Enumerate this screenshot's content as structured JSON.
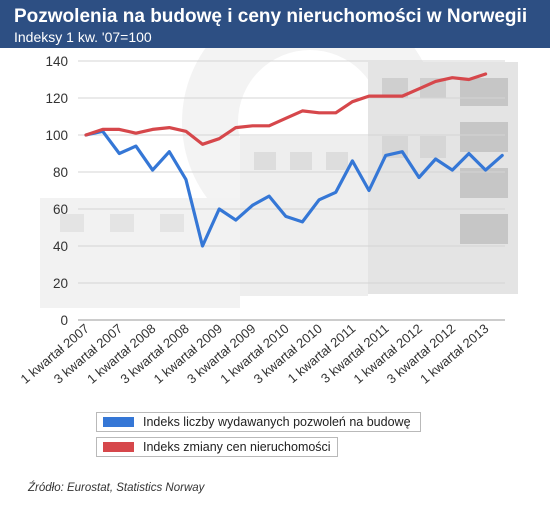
{
  "header": {
    "title": "Pozwolenia na budowę i ceny nieruchomości w Norwegii",
    "subtitle": "Indeksy 1 kw. '07=100"
  },
  "colors": {
    "header_bg": "#2d4f83",
    "series_blue": "#3577d6",
    "series_red": "#d6474b"
  },
  "source": "Źródło: Eurostat, Statistics Norway",
  "chart_data": {
    "type": "line",
    "ylim": [
      0,
      140
    ],
    "yticks": [
      0,
      20,
      40,
      60,
      80,
      100,
      120,
      140
    ],
    "xticklabels": [
      "1 kwartał 2007",
      "3 kwartał 2007",
      "1 kwartał 2008",
      "3 kwartał 2008",
      "1 kwartał 2009",
      "3 kwartał 2009",
      "1 kwartał 2010",
      "3 kwartał 2010",
      "1 kwartał 2011",
      "3 kwartał 2011",
      "1 kwartał 2012",
      "3 kwartał 2012",
      "1 kwartał 2013"
    ],
    "grid": true,
    "legend_position": "bottom",
    "series": [
      {
        "name": "Indeks liczby wydawanych pozwoleń na budowę",
        "color": "#3577d6",
        "values": [
          100,
          102,
          90,
          94,
          81,
          91,
          76,
          40,
          60,
          54,
          62,
          67,
          56,
          53,
          65,
          69,
          86,
          70,
          89,
          91,
          77,
          87,
          81,
          90,
          81,
          89
        ]
      },
      {
        "name": "Indeks zmiany cen nieruchomości",
        "color": "#d6474b",
        "values": [
          100,
          103,
          103,
          101,
          103,
          104,
          102,
          95,
          98,
          104,
          105,
          105,
          109,
          113,
          112,
          112,
          118,
          121,
          121,
          121,
          125,
          129,
          131,
          130,
          133,
          null
        ]
      }
    ]
  }
}
